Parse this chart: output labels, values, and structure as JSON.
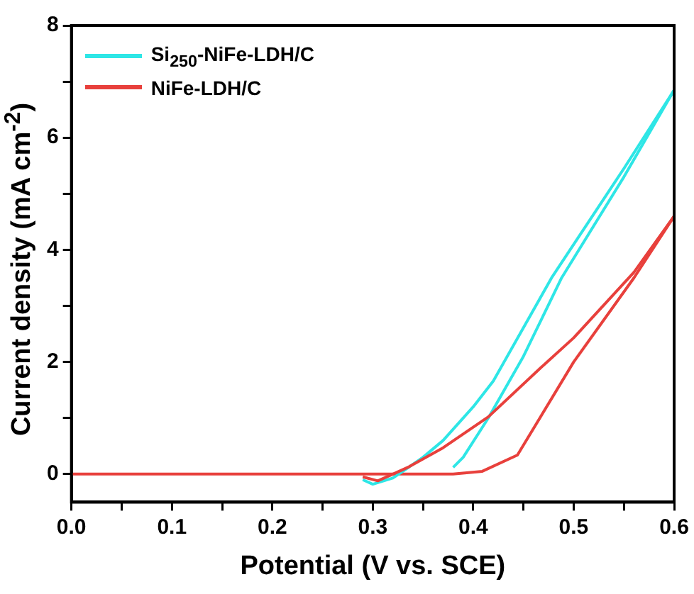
{
  "chart_data": {
    "type": "line",
    "xlabel": "Potential (V vs. SCE)",
    "ylabel": "Current density (mA cm$^{-2}$)",
    "xlim": [
      0,
      0.6
    ],
    "ylim": [
      -0.5,
      8
    ],
    "xticks": [
      {
        "value": 0,
        "label": "0.0"
      },
      {
        "value": 0.05,
        "label": null
      },
      0.1,
      {
        "value": 0.15,
        "label": null
      },
      0.2,
      {
        "value": 0.25,
        "label": null
      },
      0.3,
      {
        "value": 0.35,
        "label": null
      },
      0.4,
      {
        "value": 0.45,
        "label": null
      },
      0.5,
      {
        "value": 0.55,
        "label": null
      },
      0.6
    ],
    "yticks": [
      0,
      {
        "value": 1,
        "label": null
      },
      2,
      {
        "value": 3,
        "label": null
      },
      4,
      {
        "value": 5,
        "label": null
      },
      6,
      {
        "value": 7,
        "label": null
      },
      8
    ],
    "grid": false,
    "legend": "top left",
    "marker": "none",
    "line_style": "solid",
    "series": [
      {
        "name": "Si$_{250}$-NiFe-LDH/C",
        "color": "#2ee6e6",
        "x": [
          0.38,
          0.39,
          0.415,
          0.45,
          0.488,
          0.55,
          0.6
        ],
        "values": [
          0.12,
          0.3,
          1.0,
          2.1,
          3.5,
          5.3,
          6.85
        ]
      },
      {
        "name": "NiFe-LDH/C",
        "color": "#e8403c",
        "x": [
          0,
          0.1,
          0.2,
          0.3,
          0.35,
          0.38,
          0.409,
          0.444,
          0.5,
          0.56,
          0.6
        ],
        "values": [
          0,
          0,
          0,
          0,
          0,
          0,
          0.05,
          0.34,
          2.0,
          3.5,
          4.6
        ]
      },
      {
        "color": "#2ee6e6",
        "x": [
          0.6,
          0.55,
          0.478,
          0.42,
          0.4,
          0.37,
          0.35,
          0.33,
          0.32,
          0.3,
          0.29
        ],
        "values": [
          6.85,
          5.45,
          3.5,
          1.66,
          1.2,
          0.6,
          0.3,
          0.05,
          -0.07,
          -0.18,
          -0.1
        ]
      },
      {
        "color": "#e8403c",
        "x": [
          0.6,
          0.56,
          0.5,
          0.465,
          0.415,
          0.37,
          0.336,
          0.32,
          0.305,
          0.29
        ],
        "values": [
          4.6,
          3.6,
          2.43,
          1.86,
          1.02,
          0.47,
          0.13,
          0,
          -0.12,
          -0.05
        ]
      }
    ]
  }
}
